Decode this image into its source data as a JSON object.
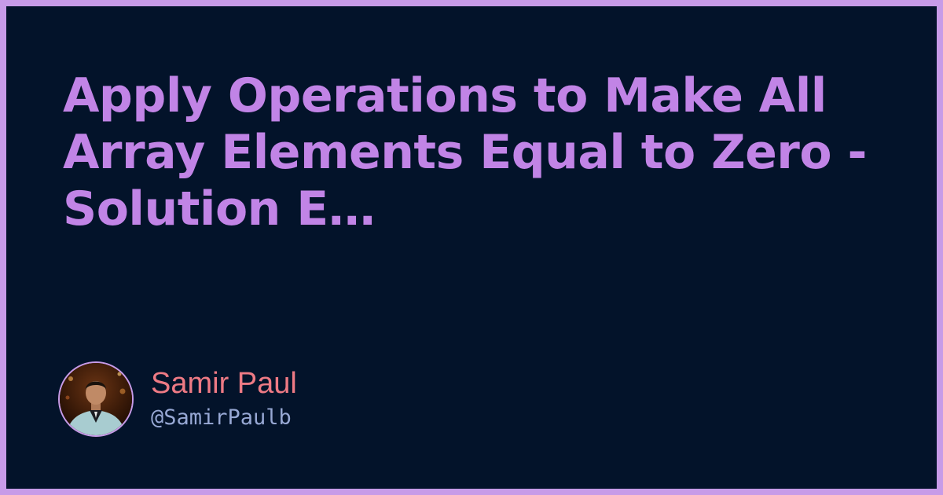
{
  "title": "Apply Operations to Make All Array Elements Equal to Zero - Solution E…",
  "author": {
    "name": "Samir Paul",
    "handle": "@SamirPaulb",
    "avatar": "avatar-photo"
  },
  "colors": {
    "border": "#c79be8",
    "background": "#03132a",
    "title": "#c184e6",
    "name": "#ee7a84",
    "handle": "#97a8d4"
  }
}
